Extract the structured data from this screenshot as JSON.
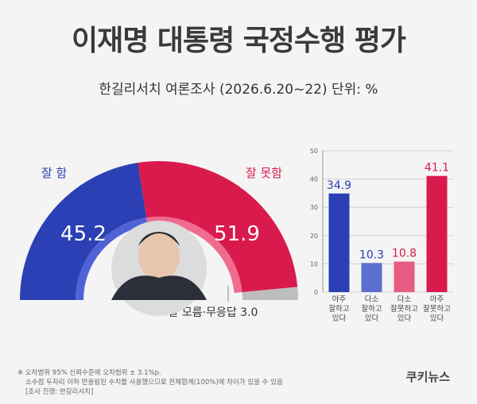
{
  "header": {
    "title": "이재명 대통령 국정수행 평가",
    "subtitle": "한길리서치 여론조사 (2026.6.20~22) 단위: %"
  },
  "chart_data": [
    {
      "type": "pie",
      "variant": "half-donut",
      "slices": [
        {
          "label": "잘 함",
          "value": 45.2,
          "value_label": "45.2",
          "color": "#2a40b4"
        },
        {
          "label": "잘 못함",
          "value": 51.9,
          "value_label": "51.9",
          "color": "#d91a4d"
        },
        {
          "label": "잘 모름·무응답 3.0",
          "value": 3.0,
          "color": "#bdbdbd"
        }
      ]
    },
    {
      "type": "bar",
      "categories": [
        [
          "아주",
          "잘하고",
          "있다"
        ],
        [
          "다소",
          "잘하고",
          "있다"
        ],
        [
          "다소",
          "잘못하고",
          "있다"
        ],
        [
          "아주",
          "잘못하고",
          "있다"
        ]
      ],
      "values": [
        34.9,
        10.3,
        10.8,
        41.1
      ],
      "value_labels": [
        "34.9",
        "10.3",
        "10.8",
        "41.1"
      ],
      "colors": [
        "#2a40b4",
        "#5c6fd0",
        "#e65c82",
        "#d91a4d"
      ],
      "ylim": [
        0,
        50
      ],
      "yticks": [
        "0",
        "10",
        "20",
        "30",
        "40",
        "50"
      ],
      "grid": true
    }
  ],
  "footnotes": [
    "※ 오차범위 95% 신뢰수준에 오차범위 ± 3.1%p.",
    "소수점 두자리 이하 반올림된 수치를 사용했으므로 전체합계(100%)에 차이가 있을 수 있음",
    "[조사 진행: 한길리서치]"
  ],
  "brand": "쿠키뉴스"
}
